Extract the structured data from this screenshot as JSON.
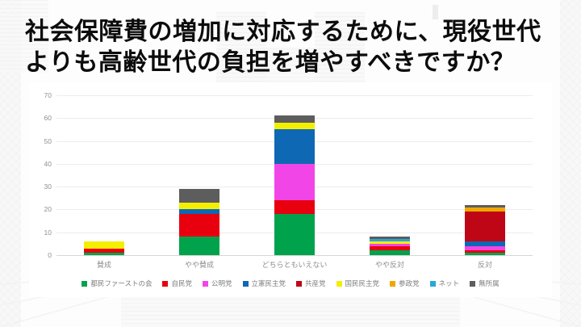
{
  "slide": {
    "title_line1": "社会保障費の増加に対応するために、現役世代",
    "title_line2": "よりも高齢世代の負担を増やすべきですか？"
  },
  "chart_data": {
    "type": "bar",
    "stacked": true,
    "title": "社会保障費の増加に対応するために、現役世代よりも高齢世代の負担を増やすべきですか？",
    "categories": [
      "賛成",
      "やや賛成",
      "どちらともいえない",
      "やや反対",
      "反対"
    ],
    "series": [
      {
        "name": "都民ファーストの会",
        "color": "#00a24c",
        "values": [
          1,
          8,
          18,
          2,
          1
        ]
      },
      {
        "name": "自民党",
        "color": "#e8000e",
        "values": [
          2,
          10,
          6,
          2,
          1
        ]
      },
      {
        "name": "公明党",
        "color": "#f245e8",
        "values": [
          0,
          0,
          16,
          1,
          2
        ]
      },
      {
        "name": "立憲民主党",
        "color": "#0e68b4",
        "values": [
          0,
          2,
          15,
          0,
          2
        ]
      },
      {
        "name": "共産党",
        "color": "#bf0617",
        "values": [
          0,
          0,
          0,
          0,
          13
        ]
      },
      {
        "name": "国民民主党",
        "color": "#f4ef00",
        "values": [
          3,
          3,
          3,
          1,
          0
        ]
      },
      {
        "name": "参政党",
        "color": "#efa700",
        "values": [
          0,
          0,
          0,
          0,
          2
        ]
      },
      {
        "name": "ネット",
        "color": "#2ba6dc",
        "values": [
          0,
          0,
          0,
          1,
          0
        ]
      },
      {
        "name": "無所属",
        "color": "#5d5d5d",
        "values": [
          0,
          6,
          3,
          1,
          1
        ]
      }
    ],
    "totals": [
      6,
      29,
      61,
      8,
      22
    ],
    "xlabel": "",
    "ylabel": "",
    "ylim": [
      0,
      70
    ],
    "yticks": [
      0,
      10,
      20,
      30,
      40,
      50,
      60,
      70
    ],
    "grid": true,
    "legend_position": "bottom"
  }
}
